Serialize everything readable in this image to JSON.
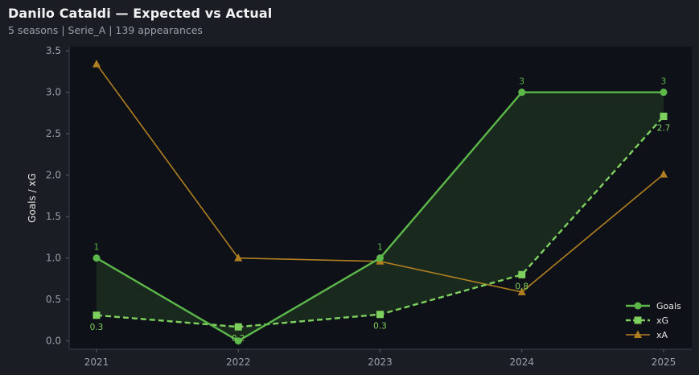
{
  "header": {
    "title": "Danilo Cataldi — Expected vs Actual",
    "subtitle": "5 seasons | Serie_A | 139 appearances"
  },
  "chart_data": {
    "type": "line",
    "x": [
      "2021",
      "2022",
      "2023",
      "2024",
      "2025"
    ],
    "ylabel": "Goals / xG",
    "ylim": [
      -0.1,
      3.55
    ],
    "yticks": [
      "0.0",
      "0.5",
      "1.0",
      "1.5",
      "2.0",
      "2.5",
      "3.0",
      "3.5"
    ],
    "legend_position": "bottom-right",
    "fill_between": [
      "Goals",
      "xG"
    ],
    "series": [
      {
        "name": "Goals",
        "marker": "circle",
        "style": "solid",
        "color": "#5cb84a",
        "values": [
          1,
          0,
          1,
          3,
          3
        ],
        "labels": [
          "1",
          "",
          "1",
          "3",
          "3"
        ]
      },
      {
        "name": "xG",
        "marker": "square",
        "style": "dashed",
        "color": "#7ed05e",
        "values": [
          0.31,
          0.17,
          0.32,
          0.8,
          2.71
        ],
        "labels": [
          "0.3",
          "0.2",
          "0.3",
          "0.8",
          "2.7"
        ]
      },
      {
        "name": "xA",
        "marker": "triangle",
        "style": "solid",
        "color": "#b08020",
        "values": [
          3.34,
          1.0,
          0.96,
          0.59,
          2.01
        ],
        "labels": [
          "",
          "",
          "",
          "",
          ""
        ]
      }
    ]
  }
}
